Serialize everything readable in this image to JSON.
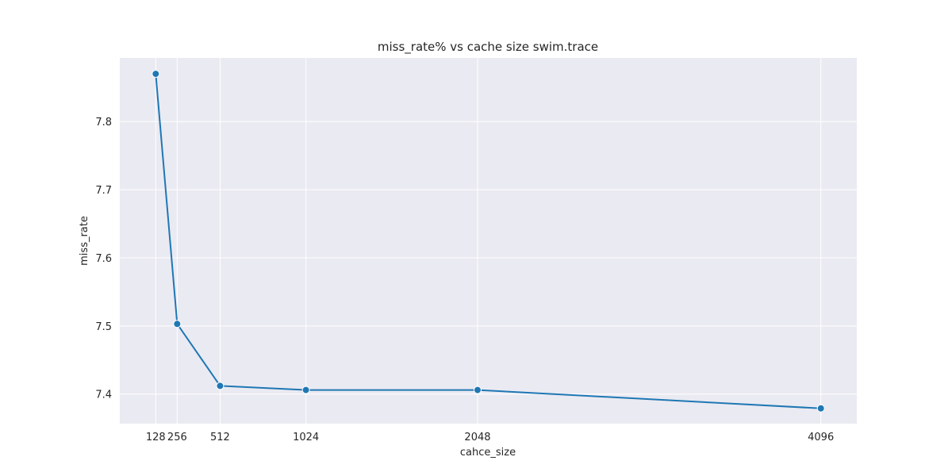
{
  "colors": {
    "plot_background": "#EAEAF2",
    "grid": "#FFFFFF",
    "line": "#1F77B4",
    "marker_edge": "#FFFFFF",
    "text": "#262626"
  },
  "chart_data": {
    "type": "line",
    "title": "miss_rate% vs cache size swim.trace",
    "xlabel": "cahce_size",
    "ylabel": "miss_rate",
    "x": [
      128,
      256,
      512,
      1024,
      2048,
      4096
    ],
    "series": [
      {
        "values": [
          7.87,
          7.503,
          7.412,
          7.406,
          7.406,
          7.379
        ]
      }
    ],
    "x_ticks": [
      128,
      256,
      512,
      1024,
      2048,
      4096
    ],
    "x_tick_labels": [
      "128",
      "256",
      "512",
      "1024",
      "2048",
      "4096"
    ],
    "y_ticks": [
      7.4,
      7.5,
      7.6,
      7.7,
      7.8
    ],
    "y_tick_labels": [
      "7.4",
      "7.5",
      "7.6",
      "7.7",
      "7.8"
    ],
    "xlim": [
      -86.4,
      4310.4
    ],
    "ylim": [
      7.3566,
      7.8934
    ],
    "grid": true,
    "markers": true,
    "legend": "none"
  }
}
